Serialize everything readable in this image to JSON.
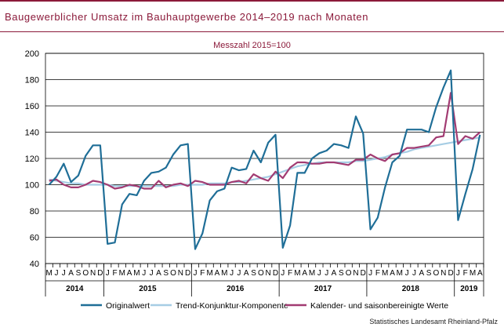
{
  "title": "Baugewerblicher Umsatz im Bauhauptgewerbe 2014–2019 nach Monaten",
  "source": "Statistisches Landesamt  Rheinland-Pfalz",
  "colors": {
    "title": "#8b1a3a",
    "original": "#1f6e97",
    "trend": "#a6cde4",
    "seasonal": "#a23b72"
  },
  "chart_data": {
    "type": "line",
    "subtitle": "Messzahl 2015=100",
    "ylim": [
      40,
      200
    ],
    "yticks": [
      40,
      60,
      80,
      100,
      120,
      140,
      160,
      180,
      200
    ],
    "grid": true,
    "legend_position": "bottom",
    "x": [
      "2014-05",
      "2014-06",
      "2014-07",
      "2014-08",
      "2014-09",
      "2014-10",
      "2014-11",
      "2014-12",
      "2015-01",
      "2015-02",
      "2015-03",
      "2015-04",
      "2015-05",
      "2015-06",
      "2015-07",
      "2015-08",
      "2015-09",
      "2015-10",
      "2015-11",
      "2015-12",
      "2016-01",
      "2016-02",
      "2016-03",
      "2016-04",
      "2016-05",
      "2016-06",
      "2016-07",
      "2016-08",
      "2016-09",
      "2016-10",
      "2016-11",
      "2016-12",
      "2017-01",
      "2017-02",
      "2017-03",
      "2017-04",
      "2017-05",
      "2017-06",
      "2017-07",
      "2017-08",
      "2017-09",
      "2017-10",
      "2017-11",
      "2017-12",
      "2018-01",
      "2018-02",
      "2018-03",
      "2018-04",
      "2018-05",
      "2018-06",
      "2018-07",
      "2018-08",
      "2018-09",
      "2018-10",
      "2018-11",
      "2018-12",
      "2019-01",
      "2019-02",
      "2019-03",
      "2019-04"
    ],
    "month_labels": [
      "M",
      "J",
      "J",
      "A",
      "S",
      "O",
      "N",
      "D",
      "J",
      "F",
      "M",
      "A",
      "M",
      "J",
      "J",
      "A",
      "S",
      "O",
      "N",
      "D",
      "J",
      "F",
      "M",
      "A",
      "M",
      "J",
      "J",
      "A",
      "S",
      "O",
      "N",
      "D",
      "J",
      "F",
      "M",
      "A",
      "M",
      "J",
      "J",
      "A",
      "S",
      "O",
      "N",
      "D",
      "J",
      "F",
      "M",
      "A",
      "M",
      "J",
      "J",
      "A",
      "S",
      "O",
      "N",
      "D",
      "J",
      "F",
      "M",
      "A"
    ],
    "year_labels": [
      "2014",
      "2015",
      "2016",
      "2017",
      "2018",
      "2019"
    ],
    "series": [
      {
        "name": "Originalwert",
        "values": [
          100,
          106,
          116,
          102,
          107,
          122,
          130,
          130,
          55,
          56,
          85,
          93,
          92,
          103,
          109,
          110,
          113,
          123,
          130,
          131,
          51,
          63,
          88,
          95,
          97,
          113,
          111,
          112,
          126,
          117,
          132,
          138,
          52,
          69,
          109,
          109,
          120,
          124,
          126,
          131,
          130,
          128,
          152,
          139,
          66,
          75,
          98,
          117,
          122,
          142,
          142,
          142,
          140,
          159,
          174,
          187,
          73,
          93,
          112,
          138
        ]
      },
      {
        "name": "Trend-Konjunktur-Komponente",
        "values": [
          104,
          103,
          102,
          101,
          101,
          100,
          100,
          100,
          100,
          99,
          99,
          99,
          99,
          99,
          99,
          99,
          99,
          99,
          100,
          100,
          100,
          100,
          101,
          101,
          101,
          102,
          102,
          103,
          104,
          105,
          106,
          108,
          110,
          112,
          114,
          115,
          116,
          117,
          117,
          117,
          117,
          117,
          118,
          118,
          119,
          120,
          121,
          123,
          124,
          125,
          127,
          128,
          129,
          130,
          131,
          132,
          133,
          134,
          135,
          136
        ]
      },
      {
        "name": "Kalender- und saisonbereinigte Werte",
        "values": [
          103,
          104,
          100,
          98,
          98,
          100,
          103,
          102,
          100,
          97,
          98,
          100,
          99,
          97,
          97,
          103,
          98,
          100,
          101,
          99,
          103,
          102,
          100,
          100,
          100,
          102,
          103,
          101,
          108,
          105,
          103,
          110,
          105,
          113,
          117,
          117,
          116,
          116,
          117,
          117,
          116,
          115,
          119,
          119,
          123,
          120,
          118,
          123,
          124,
          128,
          128,
          129,
          130,
          136,
          137,
          170,
          131,
          137,
          135,
          140
        ]
      }
    ]
  }
}
